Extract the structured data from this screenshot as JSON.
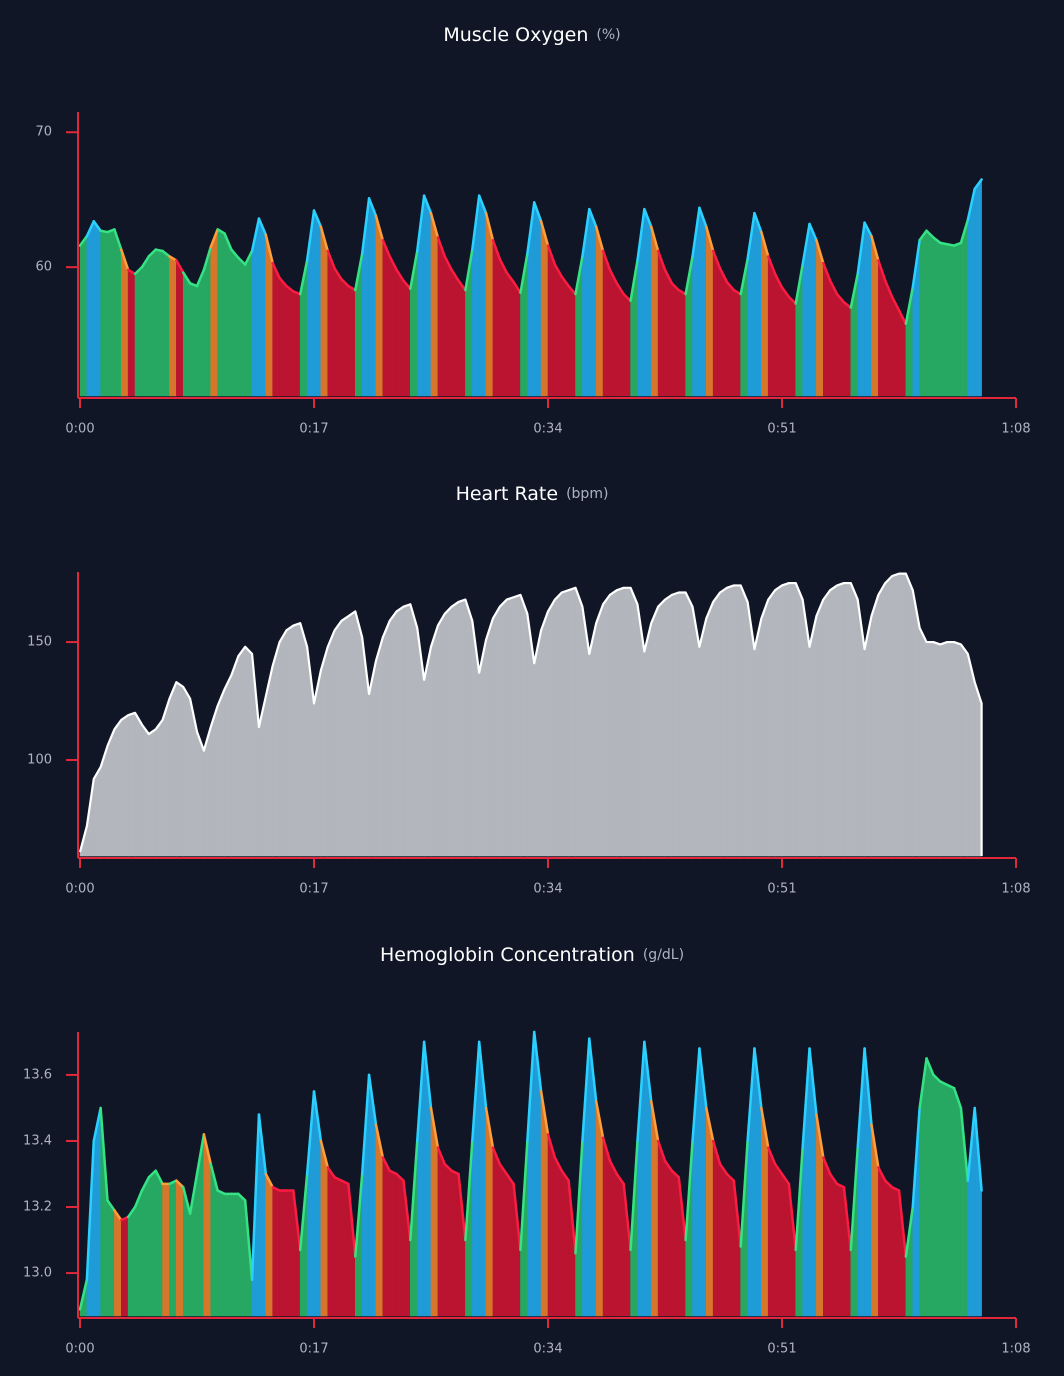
{
  "chart_data": [
    {
      "type": "area",
      "title": "Muscle Oxygen",
      "unit": "(%)",
      "x": [
        0,
        0.5,
        1,
        1.5,
        2,
        2.5,
        3,
        3.5,
        4,
        4.5,
        5,
        5.5,
        6,
        6.5,
        7,
        7.5,
        8,
        8.5,
        9,
        9.5,
        10,
        10.5,
        11,
        11.5,
        12,
        12.5,
        13,
        13.5,
        14,
        14.5,
        15,
        15.5,
        16,
        16.5,
        17,
        17.5,
        18,
        18.5,
        19,
        19.5,
        20,
        20.5,
        21,
        21.5,
        22,
        22.5,
        23,
        23.5,
        24,
        24.5,
        25,
        25.5,
        26,
        26.5,
        27,
        27.5,
        28,
        28.5,
        29,
        29.5,
        30,
        30.5,
        31,
        31.5,
        32,
        32.5,
        33,
        33.5,
        34,
        34.5,
        35,
        35.5,
        36,
        36.5,
        37,
        37.5,
        38,
        38.5,
        39,
        39.5,
        40,
        40.5,
        41,
        41.5,
        42,
        42.5,
        43,
        43.5,
        44,
        44.5,
        45,
        45.5,
        46,
        46.5,
        47,
        47.5,
        48,
        48.5,
        49,
        49.5,
        50,
        50.5,
        51,
        51.5,
        52,
        52.5,
        53,
        53.5,
        54,
        54.5,
        55,
        55.5,
        56,
        56.5,
        57,
        57.5,
        58,
        58.5,
        59,
        59.5,
        60,
        60.5,
        61,
        61.5,
        62,
        62.5,
        63,
        63.5,
        64,
        64.5,
        65,
        65.5
      ],
      "values": [
        61.6,
        62.3,
        63.4,
        62.7,
        62.6,
        62.8,
        61.3,
        59.8,
        59.5,
        60,
        60.8,
        61.3,
        61.2,
        60.8,
        60.5,
        59.6,
        58.8,
        58.6,
        59.8,
        61.5,
        62.8,
        62.5,
        61.3,
        60.7,
        60.2,
        61.2,
        63.6,
        62.4,
        60.3,
        59.2,
        58.6,
        58.2,
        58,
        60.5,
        64.2,
        63,
        61.2,
        59.9,
        59.1,
        58.6,
        58.3,
        61,
        65.1,
        63.8,
        62,
        60.8,
        59.8,
        59,
        58.4,
        61.2,
        65.3,
        64,
        62.2,
        60.8,
        59.8,
        59,
        58.3,
        61.3,
        65.3,
        64,
        62,
        60.6,
        59.6,
        58.9,
        58.1,
        61,
        64.8,
        63.4,
        61.6,
        60.2,
        59.3,
        58.6,
        58,
        60.8,
        64.3,
        63,
        61.2,
        59.8,
        58.8,
        58,
        57.5,
        60.5,
        64.3,
        63,
        61.2,
        59.8,
        58.8,
        58.3,
        58,
        60.8,
        64.4,
        63,
        61.2,
        59.9,
        58.9,
        58.3,
        58,
        60.6,
        64,
        62.6,
        60.8,
        59.5,
        58.5,
        57.8,
        57.3,
        60.2,
        63.2,
        62,
        60.3,
        59,
        58,
        57.4,
        57,
        59.5,
        63.3,
        62.3,
        60.5,
        59,
        57.8,
        56.8,
        55.8,
        58.5,
        62,
        62.7,
        62.2,
        61.8,
        61.7,
        61.6,
        61.8,
        63.5,
        65.8,
        66.5
      ],
      "colors": [
        "#27a862",
        "#1f9bd7",
        "#1f9bd7",
        "#27a862",
        "#27a862",
        "#27a862",
        "#d6762a",
        "#bb1430",
        "#27a862",
        "#27a862",
        "#27a862",
        "#27a862",
        "#27a862",
        "#d6762a",
        "#bb1430",
        "#27a862",
        "#27a862",
        "#27a862",
        "#27a862",
        "#d6762a",
        "#27a862",
        "#27a862",
        "#27a862",
        "#27a862",
        "#27a862",
        "#1f9bd7",
        "#1f9bd7",
        "#d6762a",
        "#bb1430",
        "#bb1430",
        "#bb1430",
        "#bb1430",
        "#27a862",
        "#1f9bd7",
        "#1f9bd7",
        "#d6762a",
        "#bb1430",
        "#bb1430",
        "#bb1430",
        "#bb1430",
        "#27a862",
        "#1f9bd7",
        "#1f9bd7",
        "#d6762a",
        "#bb1430",
        "#bb1430",
        "#bb1430",
        "#bb1430",
        "#27a862",
        "#1f9bd7",
        "#1f9bd7",
        "#d6762a",
        "#bb1430",
        "#bb1430",
        "#bb1430",
        "#bb1430",
        "#27a862",
        "#1f9bd7",
        "#1f9bd7",
        "#d6762a",
        "#bb1430",
        "#bb1430",
        "#bb1430",
        "#bb1430",
        "#27a862",
        "#1f9bd7",
        "#1f9bd7",
        "#d6762a",
        "#bb1430",
        "#bb1430",
        "#bb1430",
        "#bb1430",
        "#27a862",
        "#1f9bd7",
        "#1f9bd7",
        "#d6762a",
        "#bb1430",
        "#bb1430",
        "#bb1430",
        "#bb1430",
        "#27a862",
        "#1f9bd7",
        "#1f9bd7",
        "#d6762a",
        "#bb1430",
        "#bb1430",
        "#bb1430",
        "#bb1430",
        "#27a862",
        "#1f9bd7",
        "#1f9bd7",
        "#d6762a",
        "#bb1430",
        "#bb1430",
        "#bb1430",
        "#bb1430",
        "#27a862",
        "#1f9bd7",
        "#1f9bd7",
        "#d6762a",
        "#bb1430",
        "#bb1430",
        "#bb1430",
        "#bb1430",
        "#27a862",
        "#1f9bd7",
        "#1f9bd7",
        "#d6762a",
        "#bb1430",
        "#bb1430",
        "#bb1430",
        "#bb1430",
        "#27a862",
        "#1f9bd7",
        "#1f9bd7",
        "#d6762a",
        "#bb1430",
        "#bb1430",
        "#bb1430",
        "#bb1430",
        "#27a862",
        "#1f9bd7",
        "#27a862",
        "#27a862",
        "#27a862",
        "#27a862",
        "#27a862",
        "#27a862",
        "#27a862",
        "#1f9bd7",
        "#1f9bd7",
        "#27a862"
      ],
      "xlim": [
        0,
        68
      ],
      "xticks": [
        {
          "value": 0,
          "label": "0:00"
        },
        {
          "value": 17,
          "label": "0:17"
        },
        {
          "value": 34,
          "label": "0:34"
        },
        {
          "value": 51,
          "label": "0:51"
        },
        {
          "value": 68,
          "label": "1:08"
        }
      ],
      "ylim": [
        50.45,
        71.5
      ],
      "yticks": [
        60,
        70
      ]
    },
    {
      "type": "area",
      "title": "Heart Rate",
      "unit": "(bpm)",
      "x": [
        0,
        0.5,
        1,
        1.5,
        2,
        2.5,
        3,
        3.5,
        4,
        4.5,
        5,
        5.5,
        6,
        6.5,
        7,
        7.5,
        8,
        8.5,
        9,
        9.5,
        10,
        10.5,
        11,
        11.5,
        12,
        12.5,
        13,
        13.5,
        14,
        14.5,
        15,
        15.5,
        16,
        16.5,
        17,
        17.5,
        18,
        18.5,
        19,
        19.5,
        20,
        20.5,
        21,
        21.5,
        22,
        22.5,
        23,
        23.5,
        24,
        24.5,
        25,
        25.5,
        26,
        26.5,
        27,
        27.5,
        28,
        28.5,
        29,
        29.5,
        30,
        30.5,
        31,
        31.5,
        32,
        32.5,
        33,
        33.5,
        34,
        34.5,
        35,
        35.5,
        36,
        36.5,
        37,
        37.5,
        38,
        38.5,
        39,
        39.5,
        40,
        40.5,
        41,
        41.5,
        42,
        42.5,
        43,
        43.5,
        44,
        44.5,
        45,
        45.5,
        46,
        46.5,
        47,
        47.5,
        48,
        48.5,
        49,
        49.5,
        50,
        50.5,
        51,
        51.5,
        52,
        52.5,
        53,
        53.5,
        54,
        54.5,
        55,
        55.5,
        56,
        56.5,
        57,
        57.5,
        58,
        58.5,
        59,
        59.5,
        60,
        60.5,
        61,
        61.5,
        62,
        62.5,
        63,
        63.5,
        64,
        64.5,
        65,
        65.5
      ],
      "values": [
        61,
        72,
        92,
        97,
        106,
        113,
        117,
        119,
        120,
        115,
        111,
        113,
        117,
        126,
        133,
        131,
        126,
        112,
        104,
        114,
        123,
        130,
        136,
        144,
        148,
        145,
        114,
        127,
        140,
        150,
        155,
        157,
        158,
        148,
        124,
        138,
        148,
        155,
        159,
        161,
        163,
        152,
        128,
        142,
        152,
        159,
        163,
        165,
        166,
        156,
        134,
        148,
        157,
        162,
        165,
        167,
        168,
        159,
        137,
        151,
        160,
        165,
        168,
        169,
        170,
        162,
        141,
        155,
        163,
        168,
        171,
        172,
        173,
        165,
        145,
        158,
        166,
        170,
        172,
        173,
        173,
        166,
        146,
        158,
        165,
        168,
        170,
        171,
        171,
        165,
        148,
        160,
        167,
        171,
        173,
        174,
        174,
        167,
        147,
        160,
        168,
        172,
        174,
        175,
        175,
        168,
        148,
        161,
        168,
        172,
        174,
        175,
        175,
        168,
        147,
        161,
        170,
        175,
        178,
        179,
        179,
        172,
        156,
        150,
        150,
        149,
        150,
        150,
        149,
        145,
        133,
        124
      ],
      "color": "#b3b6bc",
      "line_color": "#ffffff",
      "xlim": [
        0,
        68
      ],
      "xticks": [
        {
          "value": 0,
          "label": "0:00"
        },
        {
          "value": 17,
          "label": "0:17"
        },
        {
          "value": 34,
          "label": "0:34"
        },
        {
          "value": 51,
          "label": "0:51"
        },
        {
          "value": 68,
          "label": "1:08"
        }
      ],
      "ylim": [
        59.3,
        179.7
      ],
      "yticks": [
        100,
        150
      ]
    },
    {
      "type": "area",
      "title": "Hemoglobin Concentration",
      "unit": "(g/dL)",
      "x": [
        0,
        0.5,
        1,
        1.5,
        2,
        2.5,
        3,
        3.5,
        4,
        4.5,
        5,
        5.5,
        6,
        6.5,
        7,
        7.5,
        8,
        8.5,
        9,
        9.5,
        10,
        10.5,
        11,
        11.5,
        12,
        12.5,
        13,
        13.5,
        14,
        14.5,
        15,
        15.5,
        16,
        16.5,
        17,
        17.5,
        18,
        18.5,
        19,
        19.5,
        20,
        20.5,
        21,
        21.5,
        22,
        22.5,
        23,
        23.5,
        24,
        24.5,
        25,
        25.5,
        26,
        26.5,
        27,
        27.5,
        28,
        28.5,
        29,
        29.5,
        30,
        30.5,
        31,
        31.5,
        32,
        32.5,
        33,
        33.5,
        34,
        34.5,
        35,
        35.5,
        36,
        36.5,
        37,
        37.5,
        38,
        38.5,
        39,
        39.5,
        40,
        40.5,
        41,
        41.5,
        42,
        42.5,
        43,
        43.5,
        44,
        44.5,
        45,
        45.5,
        46,
        46.5,
        47,
        47.5,
        48,
        48.5,
        49,
        49.5,
        50,
        50.5,
        51,
        51.5,
        52,
        52.5,
        53,
        53.5,
        54,
        54.5,
        55,
        55.5,
        56,
        56.5,
        57,
        57.5,
        58,
        58.5,
        59,
        59.5,
        60,
        60.5,
        61,
        61.5,
        62,
        62.5,
        63,
        63.5,
        64,
        64.5,
        65,
        65.5
      ],
      "values": [
        12.89,
        12.98,
        13.4,
        13.5,
        13.22,
        13.19,
        13.16,
        13.17,
        13.2,
        13.25,
        13.29,
        13.31,
        13.27,
        13.27,
        13.28,
        13.26,
        13.18,
        13.3,
        13.42,
        13.33,
        13.25,
        13.24,
        13.24,
        13.24,
        13.22,
        12.98,
        13.48,
        13.3,
        13.26,
        13.25,
        13.25,
        13.25,
        13.07,
        13.3,
        13.55,
        13.4,
        13.32,
        13.29,
        13.28,
        13.27,
        13.05,
        13.3,
        13.6,
        13.45,
        13.35,
        13.31,
        13.3,
        13.28,
        13.1,
        13.4,
        13.7,
        13.5,
        13.38,
        13.33,
        13.31,
        13.3,
        13.1,
        13.4,
        13.7,
        13.5,
        13.38,
        13.33,
        13.3,
        13.27,
        13.07,
        13.4,
        13.73,
        13.55,
        13.42,
        13.35,
        13.31,
        13.28,
        13.06,
        13.4,
        13.71,
        13.52,
        13.41,
        13.34,
        13.3,
        13.27,
        13.07,
        13.4,
        13.7,
        13.52,
        13.4,
        13.34,
        13.31,
        13.29,
        13.1,
        13.4,
        13.68,
        13.5,
        13.4,
        13.33,
        13.3,
        13.28,
        13.08,
        13.4,
        13.68,
        13.5,
        13.38,
        13.33,
        13.3,
        13.27,
        13.07,
        13.38,
        13.68,
        13.48,
        13.35,
        13.3,
        13.27,
        13.26,
        13.07,
        13.38,
        13.68,
        13.45,
        13.32,
        13.28,
        13.26,
        13.25,
        13.05,
        13.2,
        13.5,
        13.65,
        13.6,
        13.58,
        13.57,
        13.56,
        13.5,
        13.28,
        13.5,
        13.25
      ],
      "colors": [
        "#27a862",
        "#1f9bd7",
        "#1f9bd7",
        "#27a862",
        "#27a862",
        "#d6762a",
        "#bb1430",
        "#27a862",
        "#27a862",
        "#27a862",
        "#27a862",
        "#27a862",
        "#d6762a",
        "#27a862",
        "#d6762a",
        "#27a862",
        "#27a862",
        "#27a862",
        "#d6762a",
        "#27a862",
        "#27a862",
        "#27a862",
        "#27a862",
        "#27a862",
        "#27a862",
        "#1f9bd7",
        "#1f9bd7",
        "#d6762a",
        "#bb1430",
        "#bb1430",
        "#bb1430",
        "#bb1430",
        "#27a862",
        "#1f9bd7",
        "#1f9bd7",
        "#d6762a",
        "#bb1430",
        "#bb1430",
        "#bb1430",
        "#bb1430",
        "#27a862",
        "#1f9bd7",
        "#1f9bd7",
        "#d6762a",
        "#bb1430",
        "#bb1430",
        "#bb1430",
        "#bb1430",
        "#27a862",
        "#1f9bd7",
        "#1f9bd7",
        "#d6762a",
        "#bb1430",
        "#bb1430",
        "#bb1430",
        "#bb1430",
        "#27a862",
        "#1f9bd7",
        "#1f9bd7",
        "#d6762a",
        "#bb1430",
        "#bb1430",
        "#bb1430",
        "#bb1430",
        "#27a862",
        "#1f9bd7",
        "#1f9bd7",
        "#d6762a",
        "#bb1430",
        "#bb1430",
        "#bb1430",
        "#bb1430",
        "#27a862",
        "#1f9bd7",
        "#1f9bd7",
        "#d6762a",
        "#bb1430",
        "#bb1430",
        "#bb1430",
        "#bb1430",
        "#27a862",
        "#1f9bd7",
        "#1f9bd7",
        "#d6762a",
        "#bb1430",
        "#bb1430",
        "#bb1430",
        "#bb1430",
        "#27a862",
        "#1f9bd7",
        "#1f9bd7",
        "#d6762a",
        "#bb1430",
        "#bb1430",
        "#bb1430",
        "#bb1430",
        "#27a862",
        "#1f9bd7",
        "#1f9bd7",
        "#d6762a",
        "#bb1430",
        "#bb1430",
        "#bb1430",
        "#bb1430",
        "#27a862",
        "#1f9bd7",
        "#1f9bd7",
        "#d6762a",
        "#bb1430",
        "#bb1430",
        "#bb1430",
        "#bb1430",
        "#27a862",
        "#1f9bd7",
        "#1f9bd7",
        "#d6762a",
        "#bb1430",
        "#bb1430",
        "#bb1430",
        "#bb1430",
        "#27a862",
        "#1f9bd7",
        "#27a862",
        "#27a862",
        "#27a862",
        "#27a862",
        "#27a862",
        "#27a862",
        "#27a862",
        "#1f9bd7",
        "#1f9bd7",
        "#27a862"
      ],
      "xlim": [
        0,
        68
      ],
      "xticks": [
        {
          "value": 0,
          "label": "0:00"
        },
        {
          "value": 17,
          "label": "0:17"
        },
        {
          "value": 34,
          "label": "0:34"
        },
        {
          "value": 51,
          "label": "0:51"
        },
        {
          "value": 68,
          "label": "1:08"
        }
      ],
      "ylim": [
        12.87,
        13.73
      ],
      "yticks": [
        {
          "value": 13,
          "label": "13.0"
        },
        13.2,
        13.4,
        13.6
      ]
    }
  ]
}
